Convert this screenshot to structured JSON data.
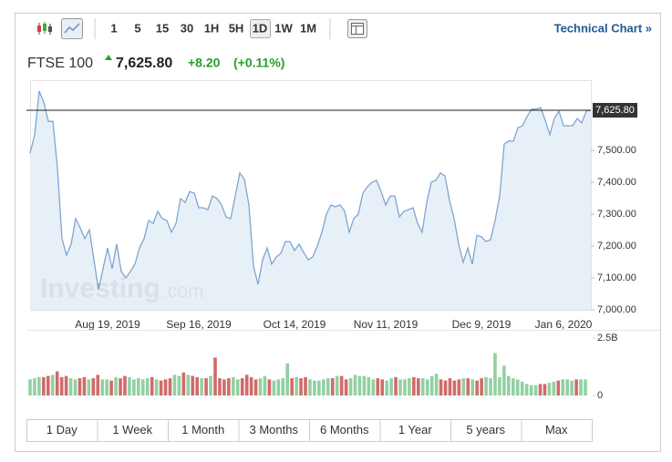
{
  "toolbar": {
    "intervals": [
      "1",
      "5",
      "15",
      "30",
      "1H",
      "5H",
      "1D",
      "1W",
      "1M"
    ],
    "link": "Technical Chart »"
  },
  "quote": {
    "name": "FTSE 100",
    "change": "+8.20",
    "change_percent": "(+0.11%)"
  },
  "watermark": [
    "Investing",
    ".com"
  ],
  "ranges": [
    "1 Day",
    "1 Week",
    "1 Month",
    "3 Months",
    "6 Months",
    "1 Year",
    "5 years",
    "Max"
  ],
  "chart_data": {
    "type": "line",
    "color": "#7ea6d1",
    "area_color": "#e4edf6",
    "grid": false,
    "last_price": {
      "value": 7625.8,
      "label": "7,625.80"
    },
    "categories": [
      null,
      null,
      null,
      null,
      null,
      null,
      null,
      null,
      null,
      null,
      null,
      null,
      null,
      null,
      null,
      null,
      null,
      "Aug 19, 2019",
      null,
      null,
      null,
      null,
      null,
      null,
      null,
      null,
      null,
      null,
      null,
      null,
      null,
      null,
      null,
      null,
      null,
      null,
      null,
      "Sep 16, 2019",
      null,
      null,
      null,
      null,
      null,
      null,
      null,
      null,
      null,
      null,
      null,
      null,
      null,
      null,
      null,
      null,
      null,
      null,
      null,
      null,
      "Oct 14, 2019",
      null,
      null,
      null,
      null,
      null,
      null,
      null,
      null,
      null,
      null,
      null,
      null,
      null,
      null,
      null,
      null,
      null,
      null,
      null,
      "Nov 11, 2019",
      null,
      null,
      null,
      null,
      null,
      null,
      null,
      null,
      null,
      null,
      null,
      null,
      null,
      null,
      null,
      null,
      null,
      null,
      null,
      null,
      "Dec 9, 2019",
      null,
      null,
      null,
      null,
      null,
      null,
      null,
      null,
      null,
      null,
      null,
      null,
      null,
      null,
      null,
      null,
      null,
      "Jan 6, 2020",
      null,
      null,
      null,
      null,
      null,
      null
    ],
    "values": [
      7491,
      7549,
      7686,
      7651,
      7591,
      7591,
      7443,
      7223,
      7171,
      7206,
      7286,
      7257,
      7223,
      7251,
      7157,
      7063,
      7129,
      7194,
      7129,
      7206,
      7120,
      7100,
      7120,
      7143,
      7194,
      7223,
      7280,
      7271,
      7309,
      7286,
      7280,
      7243,
      7271,
      7349,
      7337,
      7371,
      7366,
      7320,
      7320,
      7314,
      7357,
      7349,
      7329,
      7291,
      7286,
      7357,
      7429,
      7409,
      7329,
      7137,
      7080,
      7157,
      7194,
      7143,
      7166,
      7177,
      7214,
      7214,
      7186,
      7206,
      7180,
      7157,
      7166,
      7200,
      7243,
      7300,
      7329,
      7323,
      7329,
      7309,
      7243,
      7286,
      7300,
      7366,
      7386,
      7400,
      7406,
      7371,
      7329,
      7357,
      7357,
      7291,
      7309,
      7314,
      7320,
      7271,
      7243,
      7337,
      7400,
      7406,
      7429,
      7420,
      7343,
      7286,
      7206,
      7149,
      7194,
      7143,
      7234,
      7229,
      7214,
      7220,
      7280,
      7357,
      7520,
      7529,
      7529,
      7571,
      7577,
      7606,
      7629,
      7629,
      7634,
      7594,
      7549,
      7600,
      7623,
      7577,
      7577,
      7577,
      7600,
      7586,
      7623,
      7625.8
    ],
    "ylim": [
      7000,
      7720
    ],
    "yticks": [
      {
        "value": 7000,
        "label": "7,000.00"
      },
      {
        "value": 7100,
        "label": "7,100.00"
      },
      {
        "value": 7200,
        "label": "7,200.00"
      },
      {
        "value": 7300,
        "label": "7,300.00"
      },
      {
        "value": 7400,
        "label": "7,400.00"
      },
      {
        "value": 7500,
        "label": "7,500.00"
      }
    ],
    "volume": [
      0.7,
      0.75,
      0.8,
      0.8,
      0.85,
      0.9,
      1.05,
      0.8,
      0.85,
      0.75,
      0.7,
      0.75,
      0.8,
      0.7,
      0.75,
      0.9,
      0.7,
      0.7,
      0.65,
      0.8,
      0.75,
      0.85,
      0.8,
      0.7,
      0.75,
      0.7,
      0.75,
      0.8,
      0.7,
      0.65,
      0.7,
      0.75,
      0.9,
      0.85,
      1.0,
      0.9,
      0.85,
      0.8,
      0.75,
      0.75,
      0.85,
      1.65,
      0.75,
      0.7,
      0.75,
      0.8,
      0.7,
      0.75,
      0.9,
      0.8,
      0.7,
      0.75,
      0.85,
      0.7,
      0.65,
      0.7,
      0.75,
      1.4,
      0.75,
      0.8,
      0.75,
      0.8,
      0.7,
      0.65,
      0.65,
      0.7,
      0.75,
      0.75,
      0.85,
      0.85,
      0.7,
      0.75,
      0.9,
      0.85,
      0.85,
      0.8,
      0.7,
      0.75,
      0.7,
      0.65,
      0.75,
      0.8,
      0.7,
      0.7,
      0.75,
      0.8,
      0.75,
      0.75,
      0.7,
      0.85,
      0.95,
      0.7,
      0.65,
      0.75,
      0.65,
      0.7,
      0.75,
      0.75,
      0.7,
      0.65,
      0.75,
      0.8,
      0.75,
      1.85,
      0.8,
      1.3,
      0.85,
      0.75,
      0.7,
      0.6,
      0.5,
      0.45,
      0.45,
      0.5,
      0.5,
      0.55,
      0.6,
      0.65,
      0.7,
      0.7,
      0.65,
      0.7,
      0.7,
      0.7
    ],
    "volume_ylim": [
      0,
      2.5
    ],
    "volume_yticks": [
      0,
      {
        "value": 2.5,
        "label": "2.5B"
      }
    ],
    "volume_up_color": "#92d0a2",
    "volume_down_color": "#d06b6b"
  }
}
